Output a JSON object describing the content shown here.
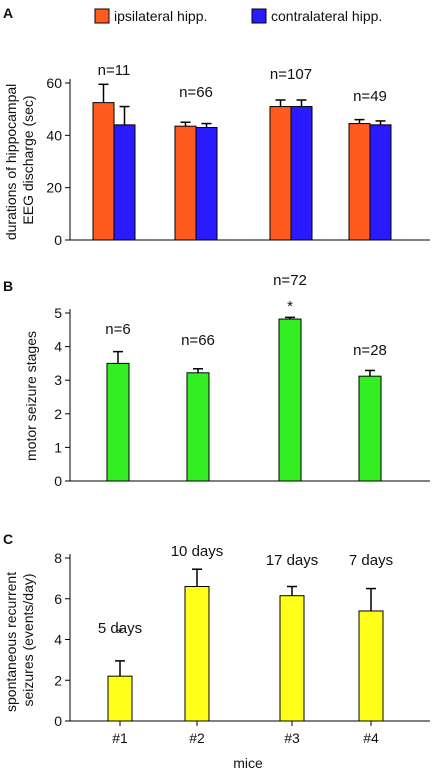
{
  "legend": {
    "items": [
      {
        "label": "ipsilateral hipp.",
        "color": "#ff5a1f"
      },
      {
        "label": "contralateral hipp.",
        "color": "#2a1aff"
      }
    ]
  },
  "chart_data": [
    {
      "panel": "A",
      "type": "bar",
      "categories": [
        "#1",
        "#2",
        "#3",
        "#4"
      ],
      "series": [
        {
          "name": "ipsilateral hipp.",
          "color": "#ff5a1f",
          "values": [
            52.5,
            43.5,
            51.0,
            44.5
          ],
          "errors": [
            7.0,
            1.5,
            2.5,
            1.5
          ]
        },
        {
          "name": "contralateral hipp.",
          "color": "#2a1aff",
          "values": [
            44.0,
            43.0,
            51.0,
            44.0
          ],
          "errors": [
            7.0,
            1.5,
            2.5,
            1.5
          ]
        }
      ],
      "annotations": [
        "n=11",
        "n=66",
        "n=107",
        "n=49"
      ],
      "ylabel": [
        "durations of hippocampal",
        "EEG discharge (sec)"
      ],
      "ylim": [
        0,
        60
      ],
      "yticks": [
        0,
        20,
        40,
        60
      ],
      "xticks_shown": false
    },
    {
      "panel": "B",
      "type": "bar",
      "categories": [
        "#1",
        "#2",
        "#3",
        "#4"
      ],
      "series": [
        {
          "color": "#33ee22",
          "values": [
            3.5,
            3.22,
            4.82,
            3.12
          ],
          "errors": [
            0.35,
            0.12,
            0.05,
            0.17
          ]
        }
      ],
      "annotations": [
        "n=6",
        "n=66",
        "n=72",
        "n=28"
      ],
      "significance": [
        "",
        "",
        "*",
        ""
      ],
      "ylabel": [
        "motor seizure stages"
      ],
      "ylim": [
        0,
        5
      ],
      "yticks": [
        0,
        1,
        2,
        3,
        4,
        5
      ],
      "xticks_shown": false
    },
    {
      "panel": "C",
      "type": "bar",
      "categories": [
        "#1",
        "#2",
        "#3",
        "#4"
      ],
      "series": [
        {
          "color": "#ffff1a",
          "values": [
            2.2,
            6.6,
            6.15,
            5.4
          ],
          "errors": [
            0.75,
            0.85,
            0.45,
            1.1
          ]
        }
      ],
      "annotations": [
        "5 days",
        "10 days",
        "17 days",
        "7 days"
      ],
      "significance": [
        "*",
        "",
        "",
        ""
      ],
      "ylabel": [
        "spontaneous recurrent",
        "seizures (events/day)"
      ],
      "xlabel": "mice",
      "ylim": [
        0,
        8
      ],
      "yticks": [
        0,
        2,
        4,
        6,
        8
      ],
      "xticks_shown": true
    }
  ]
}
